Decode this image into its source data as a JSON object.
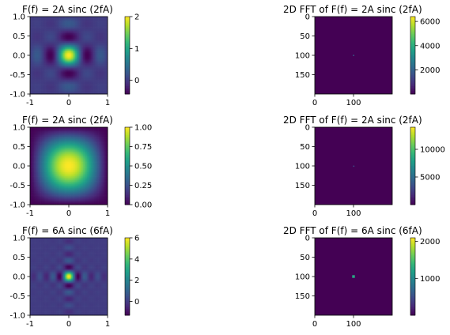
{
  "chart_data": [
    {
      "type": "heatmap",
      "title": "F(f) = 2A sinc (2fA)",
      "colormap": "viridis",
      "function": {
        "kind": "sinc2d",
        "k": 3
      },
      "extent": [
        -1,
        1,
        -1,
        1
      ],
      "xticks": [
        -1,
        0,
        1
      ],
      "yticks": [
        1.0,
        0.5,
        0.0,
        -0.5,
        -1.0
      ],
      "ytick_labels": [
        "1.0",
        "0.5",
        "0.0",
        "-0.5",
        "-1.0"
      ],
      "colorbar": {
        "min": -0.43,
        "max": 2,
        "ticks": [
          0,
          1,
          2
        ],
        "tick_labels": [
          "0",
          "1",
          "2"
        ]
      }
    },
    {
      "type": "heatmap",
      "title": "2D FFT of F(f) = 2A sinc (2fA)",
      "colormap": "viridis",
      "function": {
        "kind": "fft-spot",
        "center": [
          100,
          100
        ],
        "radius": 1.2,
        "level": 0.32
      },
      "pixel_range": [
        0,
        200
      ],
      "xticks": [
        0,
        100
      ],
      "yticks": [
        0,
        50,
        100,
        150
      ],
      "colorbar": {
        "min": 0,
        "max": 6400,
        "ticks": [
          2000,
          4000,
          6000
        ],
        "tick_labels": [
          "2000",
          "4000",
          "6000"
        ]
      }
    },
    {
      "type": "heatmap",
      "title": "F(f) = 2A sinc (2fA)",
      "colormap": "viridis",
      "function": {
        "kind": "sinc2d",
        "k": 1
      },
      "extent": [
        -1,
        1,
        -1,
        1
      ],
      "xticks": [
        -1,
        0,
        1
      ],
      "yticks": [
        1.0,
        0.5,
        0.0,
        -0.5,
        -1.0
      ],
      "ytick_labels": [
        "1.0",
        "0.5",
        "0.0",
        "-0.5",
        "-1.0"
      ],
      "colorbar": {
        "min": 0,
        "max": 1,
        "ticks": [
          0,
          0.25,
          0.5,
          0.75,
          1.0
        ],
        "tick_labels": [
          "0.00",
          "0.25",
          "0.50",
          "0.75",
          "1.00"
        ]
      }
    },
    {
      "type": "heatmap",
      "title": "2D FFT of F(f) = 2A sinc (2fA)",
      "colormap": "viridis",
      "function": {
        "kind": "fft-spot",
        "center": [
          100,
          100
        ],
        "radius": 0.8,
        "level": 0.25
      },
      "pixel_range": [
        0,
        200
      ],
      "xticks": [
        0,
        100
      ],
      "yticks": [
        0,
        50,
        100,
        150
      ],
      "colorbar": {
        "min": 0,
        "max": 14000,
        "ticks": [
          5000,
          10000
        ],
        "tick_labels": [
          "5000",
          "10000"
        ]
      }
    },
    {
      "type": "heatmap",
      "title": "F(f) = 6A sinc (6fA)",
      "colormap": "viridis",
      "function": {
        "kind": "sinc2d",
        "k": 6
      },
      "extent": [
        -1,
        1,
        -1,
        1
      ],
      "xticks": [
        -1,
        0,
        1
      ],
      "yticks": [
        1.0,
        0.5,
        0.0,
        -0.5,
        -1.0
      ],
      "ytick_labels": [
        "1.0",
        "0.5",
        "0.0",
        "-0.5",
        "-1.0"
      ],
      "colorbar": {
        "min": -1.3,
        "max": 6,
        "ticks": [
          0,
          2,
          4,
          6
        ],
        "tick_labels": [
          "0",
          "2",
          "4",
          "6"
        ]
      }
    },
    {
      "type": "heatmap",
      "title": "2D FFT of F(f) = 6A sinc (6fA)",
      "colormap": "viridis",
      "function": {
        "kind": "fft-spot",
        "center": [
          100,
          100
        ],
        "radius": 3.5,
        "level": 0.6
      },
      "pixel_range": [
        0,
        200
      ],
      "xticks": [
        0,
        100
      ],
      "yticks": [
        0,
        50,
        100,
        150
      ],
      "colorbar": {
        "min": 0,
        "max": 2100,
        "ticks": [
          1000,
          2000
        ],
        "tick_labels": [
          "1000",
          "2000"
        ]
      }
    }
  ]
}
